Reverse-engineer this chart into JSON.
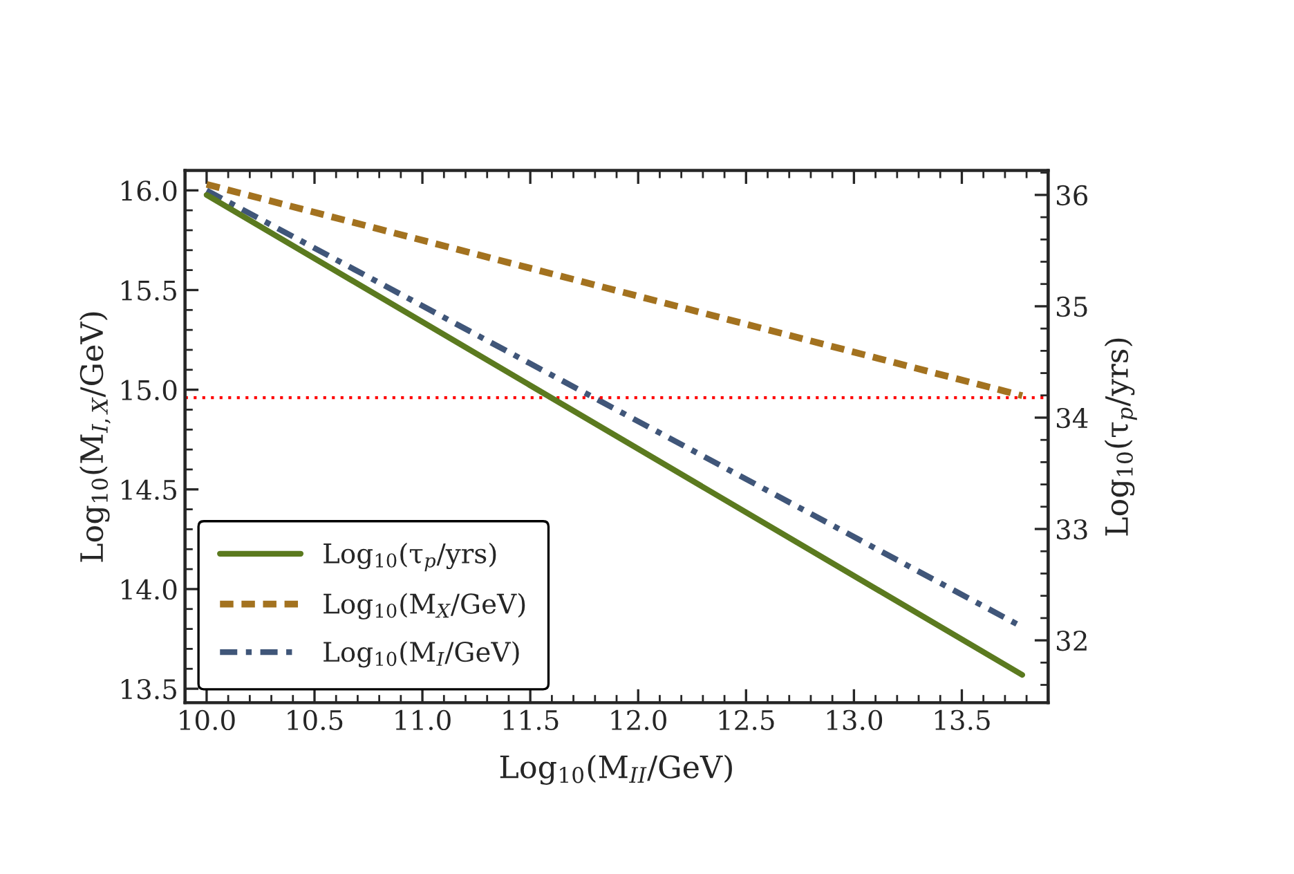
{
  "chart_data": {
    "type": "line",
    "xlabel": "Log$_{10}$(M$_{II}$/GeV)",
    "ylabel": "Log$_{10}$(M$_{I,X}$/GeV)",
    "y2label": "Log$_{10}$(τ$_{p}$/yrs)",
    "x": [
      10.0,
      13.78
    ],
    "series": [
      {
        "name": "Log$_{10}$(τ$_{p}$/yrs)",
        "color": "#5b7a1f",
        "values": [
          36.0,
          31.69
        ],
        "axis": "y2",
        "line_style": "solid"
      },
      {
        "name": "Log$_{10}$(M$_{X}$/GeV)",
        "color": "#a3721f",
        "values": [
          16.03,
          14.97
        ],
        "line_style": "dashed"
      },
      {
        "name": "Log$_{10}$(M$_{I}$/GeV)",
        "color": "#405679",
        "values": [
          16.0,
          13.81
        ],
        "line_style": "dashdot"
      }
    ],
    "ref_lines": [
      {
        "axis": "y",
        "value": 14.96,
        "color": "#ff0000",
        "line_style": "dotted"
      }
    ],
    "xlim": [
      9.9,
      13.9
    ],
    "xticks": [
      {
        "value": 10.0,
        "label": "10.0"
      },
      10.5,
      {
        "value": 11.0,
        "label": "11.0"
      },
      11.5,
      {
        "value": 12.0,
        "label": "12.0"
      },
      12.5,
      {
        "value": 13.0,
        "label": "13.0"
      },
      13.5
    ],
    "ylim": [
      13.43,
      16.1
    ],
    "yticks": [
      13.5,
      {
        "value": 14.0,
        "label": "14.0"
      },
      14.5,
      {
        "value": 15.0,
        "label": "15.0"
      },
      15.5,
      {
        "value": 16.0,
        "label": "16.0"
      }
    ],
    "y2lim": [
      31.44,
      36.22
    ],
    "y2ticks": [
      32,
      33,
      34,
      35,
      36
    ],
    "legend": "bottom left",
    "grid": false
  }
}
